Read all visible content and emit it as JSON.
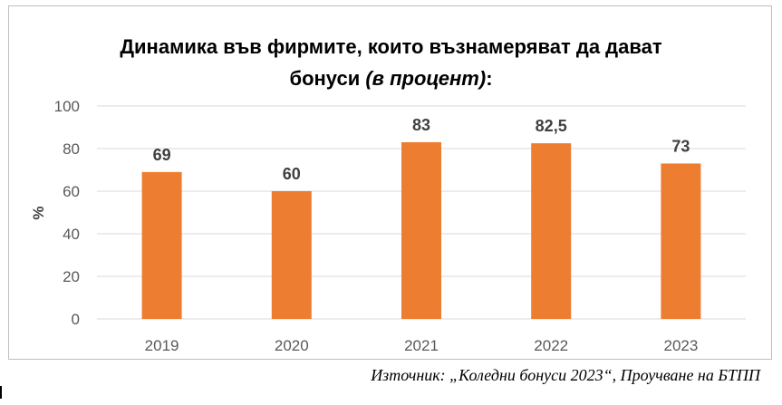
{
  "chart_data": {
    "type": "bar",
    "title_line1": "Динамика във фирмите, които възнамеряват да дават",
    "title_line2_prefix": "бонуси ",
    "title_line2_italic": "(в процент)",
    "title_line2_suffix": ":",
    "categories": [
      "2019",
      "2020",
      "2021",
      "2022",
      "2023"
    ],
    "values": [
      69,
      60,
      83,
      82.5,
      73
    ],
    "data_labels": [
      "69",
      "60",
      "83",
      "82,5",
      "73"
    ],
    "ylabel": "%",
    "xlabel": "",
    "ylim": [
      0,
      100
    ],
    "yticks": [
      0,
      20,
      40,
      60,
      80,
      100
    ],
    "grid": true,
    "bar_color": "#ED7D31",
    "grid_color": "#D9D9D9"
  },
  "source_text": "Източник: „Коледни бонуси 2023“, Проучване на БТПП"
}
